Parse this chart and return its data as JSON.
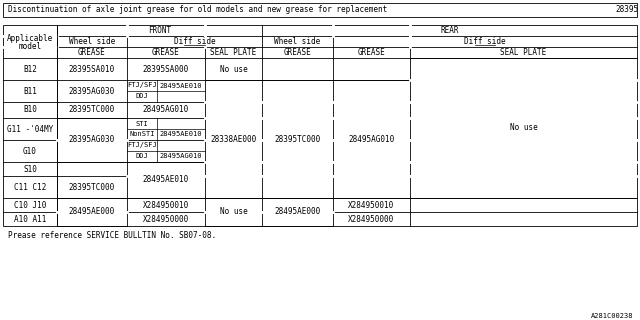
{
  "title": "Discontinuation of axle joint grease for old models and new grease for replacement",
  "title_code": "28395",
  "footer": "Prease reference SERVICE BULLTIN No. SB07-08.",
  "watermark": "A281C00238",
  "bg_color": "#ffffff",
  "font_size": 5.5,
  "font_size_small": 5.0
}
